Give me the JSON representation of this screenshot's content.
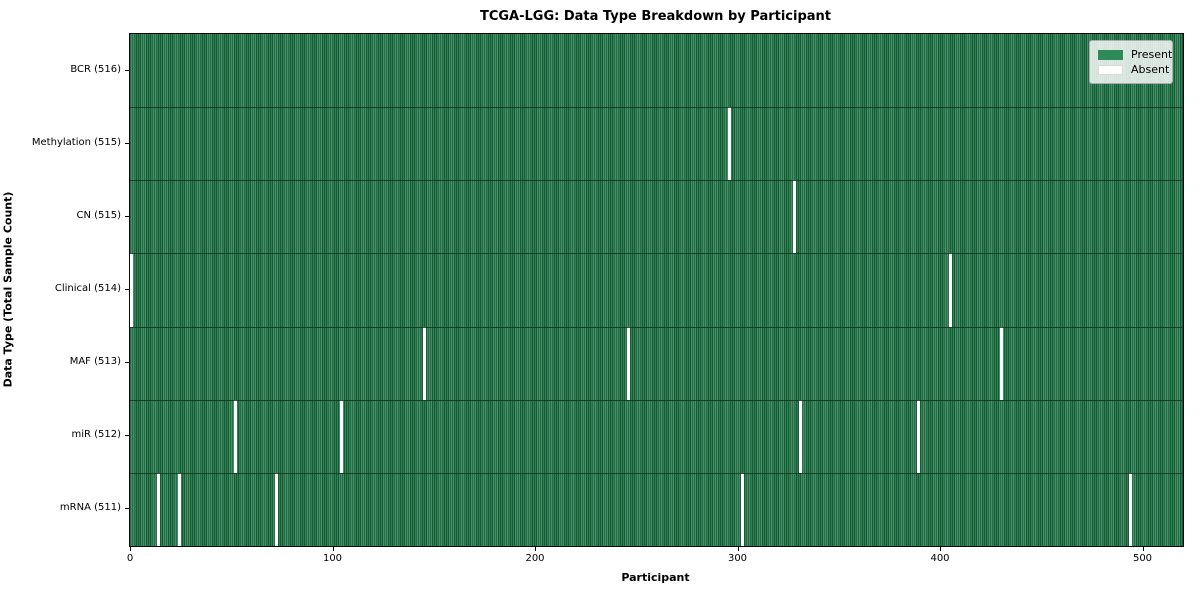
{
  "chart_data": {
    "type": "heatmap",
    "title": "TCGA-LGG: Data Type Breakdown by Participant",
    "xlabel": "Participant",
    "ylabel": "Data Type (Total Sample Count)",
    "x_ticks": [
      0,
      100,
      200,
      300,
      400,
      500
    ],
    "xlim": [
      0,
      516
    ],
    "total_participants": 516,
    "grid": false,
    "legend_position": "upper right",
    "legend": [
      {
        "label": "Present",
        "color": "#2e8b57"
      },
      {
        "label": "Absent",
        "color": "#ffffff"
      }
    ],
    "present_color": "#2e8b57",
    "present_edge_color": "#1f5e3c",
    "absent_color": "#ffffff",
    "rows": [
      {
        "label": "BCR (516)",
        "data_type": "BCR",
        "present_count": 516,
        "absent_participants": []
      },
      {
        "label": "Methylation (515)",
        "data_type": "Methylation",
        "present_count": 515,
        "absent_participants": [
          296
        ]
      },
      {
        "label": "CN (515)",
        "data_type": "CN",
        "present_count": 515,
        "absent_participants": [
          328
        ]
      },
      {
        "label": "Clinical (514)",
        "data_type": "Clinical",
        "present_count": 514,
        "absent_participants": [
          0,
          405
        ]
      },
      {
        "label": "MAF (513)",
        "data_type": "MAF",
        "present_count": 513,
        "absent_participants": [
          145,
          246,
          430
        ]
      },
      {
        "label": "miR (512)",
        "data_type": "miR",
        "present_count": 512,
        "absent_participants": [
          52,
          104,
          331,
          389
        ]
      },
      {
        "label": "mRNA (511)",
        "data_type": "mRNA",
        "present_count": 511,
        "absent_participants": [
          14,
          24,
          72,
          302,
          494
        ]
      }
    ]
  }
}
